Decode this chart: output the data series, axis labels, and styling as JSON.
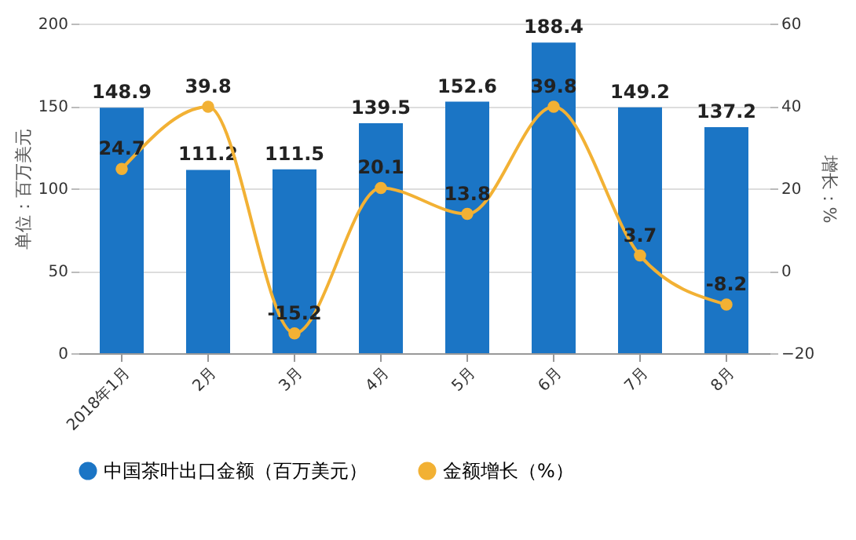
{
  "chart_data": {
    "type": "bar",
    "categories": [
      "2018年1月",
      "2月",
      "3月",
      "4月",
      "5月",
      "6月",
      "7月",
      "8月"
    ],
    "ylabel": "单位：百万美元",
    "y2label": "增长：%",
    "ylim": [
      0,
      200
    ],
    "yticks": [
      0,
      50,
      100,
      150,
      200
    ],
    "y2lim": [
      -20,
      60
    ],
    "y2ticks": [
      -20,
      0,
      20,
      40,
      60
    ],
    "series": [
      {
        "name": "中国茶叶出口金额（百万美元）",
        "color": "#1b75c5",
        "values": [
          148.9,
          111.2,
          111.5,
          139.5,
          152.6,
          188.4,
          149.2,
          137.2
        ]
      },
      {
        "name": "金额增长（%）",
        "type": "line",
        "axis": "y2",
        "color": "#f2b134",
        "values": [
          24.7,
          39.8,
          -15.2,
          20.1,
          13.8,
          39.8,
          3.7,
          -8.2
        ]
      }
    ],
    "data_labels": true,
    "grid": "y",
    "legend": "bottom",
    "marker": "circle"
  }
}
